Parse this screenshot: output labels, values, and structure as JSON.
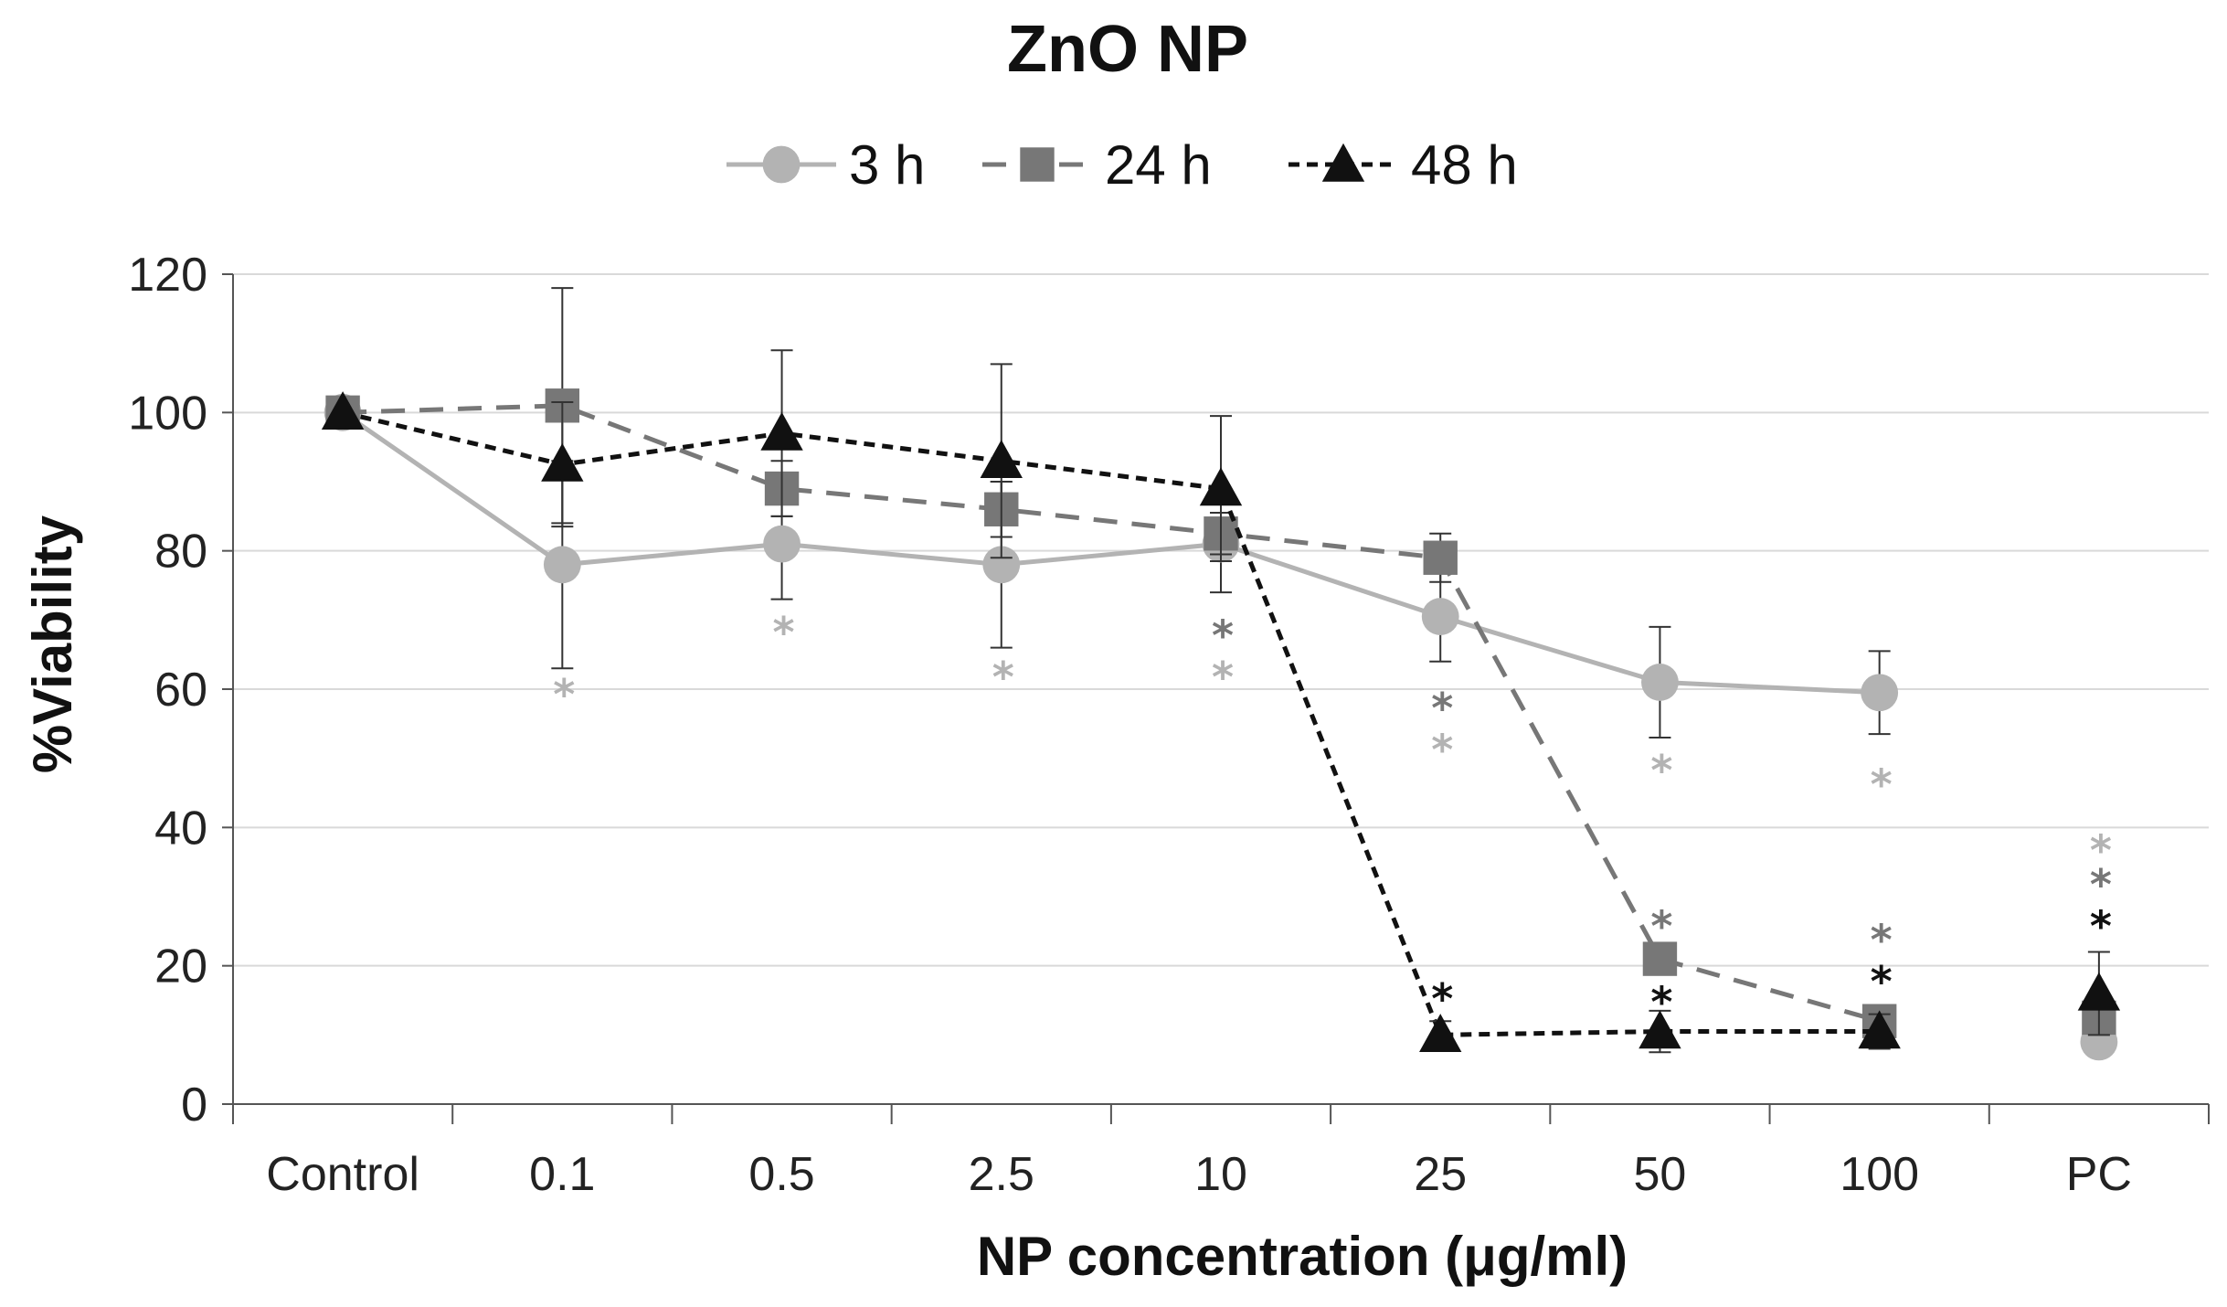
{
  "chart_data": {
    "type": "line",
    "title": "ZnO NP",
    "xlabel": "NP concentration (μg/ml)",
    "ylabel": "%Viability",
    "categories": [
      "Control",
      "0.1",
      "0.5",
      "2.5",
      "10",
      "25",
      "50",
      "100",
      "PC"
    ],
    "ylim": [
      0,
      120
    ],
    "yticks": [
      0,
      20,
      40,
      60,
      80,
      100,
      120
    ],
    "grid": true,
    "legend_position": "top-center",
    "series": [
      {
        "name": "3 h",
        "color": "#b3b3b3",
        "marker": "circle",
        "dash": "solid",
        "values": [
          100,
          78,
          81,
          78,
          81,
          70.5,
          61,
          59.5,
          9
        ],
        "errors": [
          null,
          15,
          8,
          12,
          7,
          6.5,
          8,
          6,
          null
        ],
        "connect_last": false
      },
      {
        "name": "24 h",
        "color": "#777777",
        "marker": "square",
        "dash": "dashed",
        "values": [
          100,
          101,
          89,
          86,
          82.5,
          79,
          21,
          12,
          12.5
        ],
        "errors": [
          null,
          17,
          4,
          4,
          3,
          3.5,
          null,
          null,
          null
        ],
        "connect_last": false
      },
      {
        "name": "48 h",
        "color": "#111111",
        "marker": "triangle",
        "dash": "dotted",
        "values": [
          100,
          92.5,
          97,
          93,
          89,
          10,
          10.5,
          10.5,
          16
        ],
        "errors": [
          null,
          9,
          12,
          14,
          10.5,
          2,
          3,
          2.5,
          6
        ],
        "connect_last": false
      }
    ],
    "annotations": [
      {
        "category": "0.1",
        "text": "*",
        "y": 60,
        "color": "#b3b3b3"
      },
      {
        "category": "0.5",
        "text": "*",
        "y": 69,
        "color": "#b3b3b3"
      },
      {
        "category": "2.5",
        "text": "*",
        "y": 62.5,
        "color": "#b3b3b3"
      },
      {
        "category": "10",
        "text": "*",
        "y": 68.5,
        "color": "#777777"
      },
      {
        "category": "10",
        "text": "*",
        "y": 62.5,
        "color": "#b3b3b3"
      },
      {
        "category": "25",
        "text": "*",
        "y": 58,
        "color": "#777777"
      },
      {
        "category": "25",
        "text": "*",
        "y": 52,
        "color": "#b3b3b3"
      },
      {
        "category": "50",
        "text": "*",
        "y": 49,
        "color": "#b3b3b3"
      },
      {
        "category": "100",
        "text": "*",
        "y": 47,
        "color": "#b3b3b3"
      },
      {
        "category": "50",
        "text": "*",
        "y": 26.5,
        "color": "#777777"
      },
      {
        "category": "25",
        "text": "*",
        "y": 16,
        "color": "#111111"
      },
      {
        "category": "50",
        "text": "*",
        "y": 15.5,
        "color": "#111111"
      },
      {
        "category": "100",
        "text": "*",
        "y": 24.5,
        "color": "#777777"
      },
      {
        "category": "100",
        "text": "*",
        "y": 18.5,
        "color": "#111111"
      },
      {
        "category": "PC",
        "text": "*",
        "y": 37.5,
        "color": "#b3b3b3"
      },
      {
        "category": "PC",
        "text": "*",
        "y": 32.5,
        "color": "#777777"
      },
      {
        "category": "PC",
        "text": "*",
        "y": 26.5,
        "color": "#111111"
      }
    ]
  }
}
